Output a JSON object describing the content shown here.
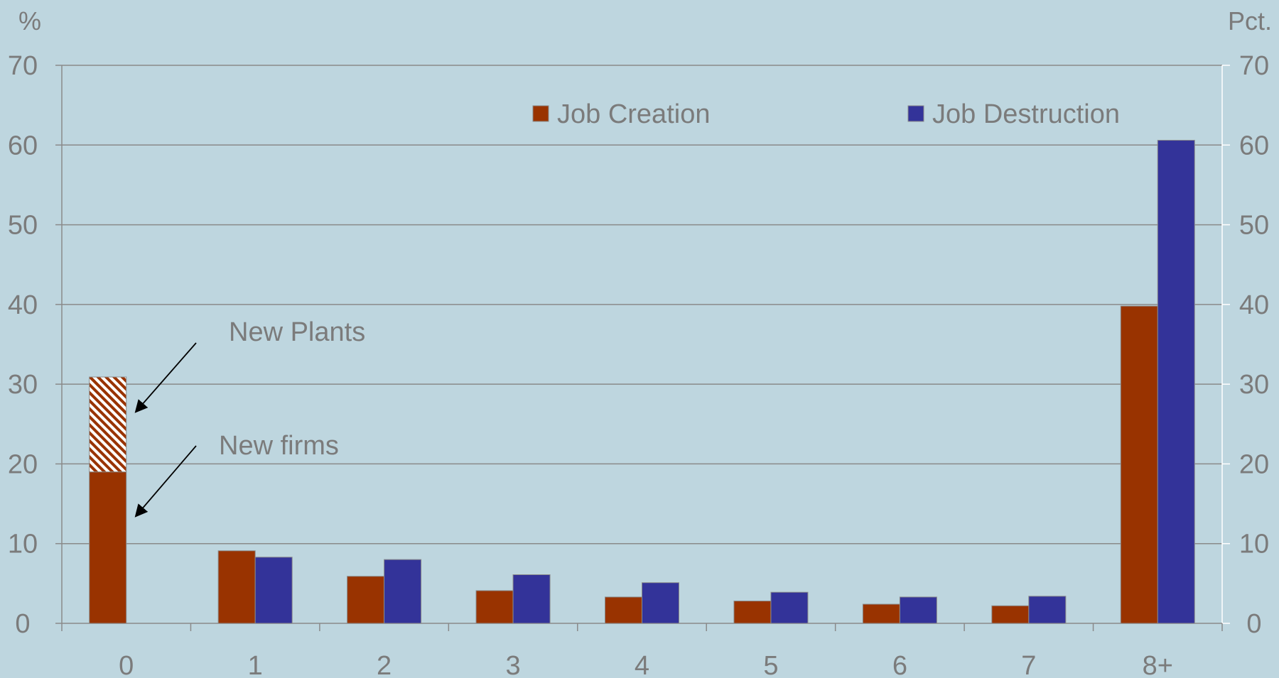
{
  "chart_data": {
    "type": "bar",
    "categories": [
      "0",
      "1",
      "2",
      "3",
      "4",
      "5",
      "6",
      "7",
      "8+"
    ],
    "series": [
      {
        "name": "Job Creation",
        "color": "#993300",
        "values": [
          19,
          9.1,
          5.9,
          4.1,
          3.3,
          2.8,
          2.4,
          2.2,
          39.8
        ]
      },
      {
        "name": "Job Destruction",
        "color": "#333399",
        "values": [
          null,
          8.3,
          8.0,
          6.1,
          5.1,
          3.9,
          3.3,
          3.4,
          60.6
        ]
      }
    ],
    "stacked_segment": {
      "category": "0",
      "base": 19,
      "top": 30.9,
      "pattern": "hatched",
      "color": "#993300"
    },
    "y_left": {
      "unit_label": "%",
      "lim": [
        0,
        70
      ],
      "ticks": [
        "0",
        "10",
        "20",
        "30",
        "40",
        "50",
        "60",
        "70"
      ]
    },
    "y_right": {
      "unit_label": "Pct.",
      "lim": [
        0,
        70
      ],
      "ticks": [
        "0",
        "10",
        "20",
        "30",
        "40",
        "50",
        "60",
        "70"
      ]
    },
    "annotations": [
      {
        "text": "New Plants",
        "points_to": "hatched segment of 0 bar"
      },
      {
        "text": "New firms",
        "points_to": "solid segment of 0 bar"
      }
    ],
    "legend_position": "top-right",
    "grid": true
  }
}
